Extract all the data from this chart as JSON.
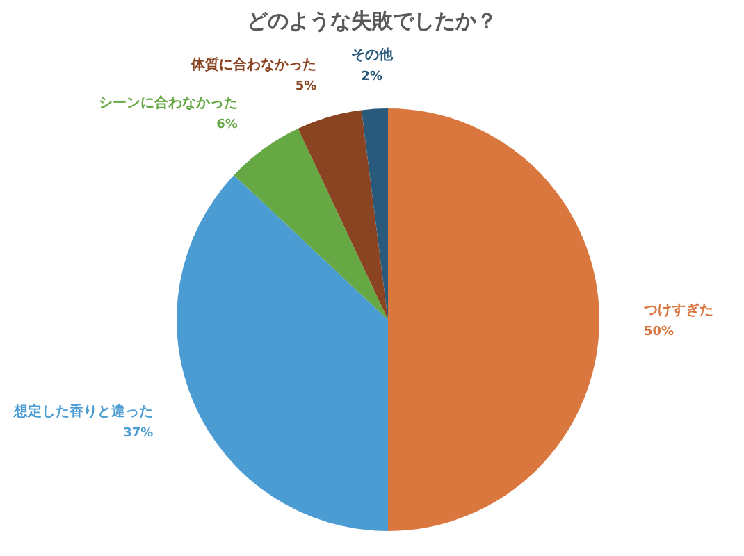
{
  "chart_data": {
    "type": "pie",
    "title": "どのような失敗でしたか？",
    "categories": [
      "つけすぎた",
      "想定した香りと違った",
      "シーンに合わなかった",
      "体質に合わなかった",
      "その他"
    ],
    "values": [
      50,
      37,
      6,
      5,
      2
    ],
    "value_labels": [
      "50%",
      "37%",
      "6%",
      "5%",
      "2%"
    ],
    "colors": [
      "#d9773f",
      "#4a9cd3",
      "#66a844",
      "#8a4421",
      "#2a5a7b"
    ]
  }
}
